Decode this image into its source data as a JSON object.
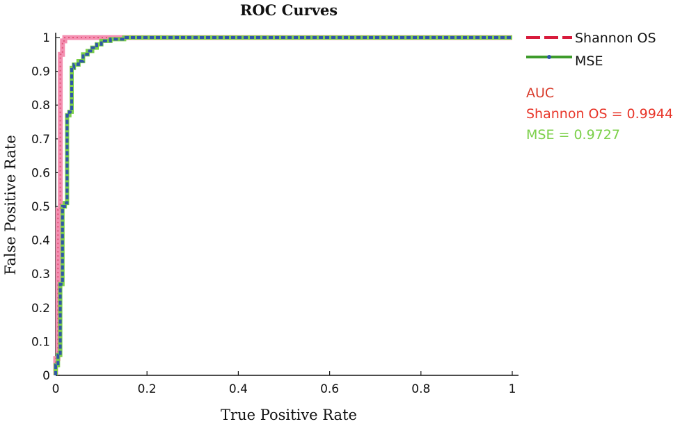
{
  "chart_data": {
    "type": "line",
    "title": "ROC Curves",
    "xlabel": "True Positive Rate",
    "ylabel": "False Positive Rate",
    "xlim": [
      0,
      1
    ],
    "ylim": [
      0,
      1
    ],
    "xticks": [
      "0",
      "0.2",
      "0.4",
      "0.6",
      "0.8",
      "1"
    ],
    "yticks": [
      "0",
      "0.1",
      "0.2",
      "0.3",
      "0.4",
      "0.5",
      "0.6",
      "0.7",
      "0.8",
      "0.9",
      "1"
    ],
    "grid": false,
    "legend_position": "top-right",
    "series": [
      {
        "name": "Shannon OS",
        "color": "#f48fb1",
        "legend_color": "#d81b3c",
        "x": [
          0,
          0.0,
          0.005,
          0.005,
          0.01,
          0.01,
          0.015,
          0.015,
          0.02,
          0.02,
          0.03,
          0.03,
          0.05,
          0.08,
          0.12,
          0.15,
          0.2,
          0.4,
          0.6,
          0.8,
          1.0
        ],
        "y": [
          0,
          0.05,
          0.05,
          0.49,
          0.49,
          0.95,
          0.95,
          0.99,
          0.99,
          1.0,
          1.0,
          1.0,
          1.0,
          1.0,
          1.0,
          1.0,
          1.0,
          1.0,
          1.0,
          1.0,
          1.0
        ]
      },
      {
        "name": "MSE",
        "color": "#2f56a8",
        "legend_color": "#3d9b2b",
        "x": [
          0,
          0.0,
          0.005,
          0.005,
          0.01,
          0.01,
          0.015,
          0.015,
          0.02,
          0.02,
          0.025,
          0.025,
          0.03,
          0.03,
          0.035,
          0.035,
          0.04,
          0.04,
          0.05,
          0.05,
          0.06,
          0.06,
          0.07,
          0.07,
          0.08,
          0.08,
          0.09,
          0.09,
          0.1,
          0.1,
          0.12,
          0.12,
          0.15,
          0.15,
          0.17,
          0.17,
          0.2,
          0.4,
          0.6,
          0.8,
          1.0
        ],
        "y": [
          0,
          0.03,
          0.03,
          0.06,
          0.06,
          0.27,
          0.27,
          0.5,
          0.5,
          0.51,
          0.51,
          0.77,
          0.77,
          0.78,
          0.78,
          0.91,
          0.91,
          0.92,
          0.92,
          0.93,
          0.93,
          0.95,
          0.95,
          0.96,
          0.96,
          0.97,
          0.97,
          0.98,
          0.98,
          0.99,
          0.99,
          0.995,
          0.995,
          1.0,
          1.0,
          1.0,
          1.0,
          1.0,
          1.0,
          1.0,
          1.0
        ]
      }
    ],
    "annotations": {
      "heading": "AUC",
      "heading_color": "#d83a2a",
      "lines": [
        {
          "text": "Shannon OS = 0.9944",
          "color": "#e8362a"
        },
        {
          "text": "MSE = 0.9727",
          "color": "#7cd04a"
        }
      ]
    }
  }
}
